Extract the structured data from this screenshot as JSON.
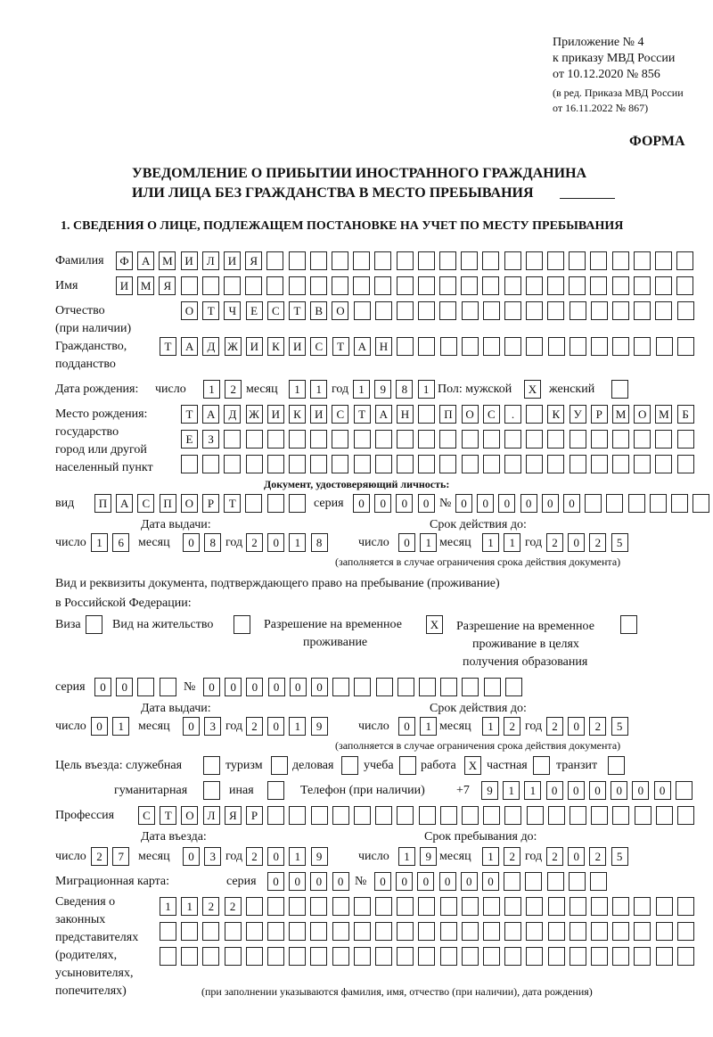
{
  "header": {
    "annex": [
      "Приложение № 4",
      "к приказу МВД России",
      "от 10.12.2020 № 856"
    ],
    "revision": [
      "(в ред. Приказа МВД России",
      "от 16.11.2022 № 867)"
    ],
    "form_label": "ФОРМА",
    "title_line1": "УВЕДОМЛЕНИЕ О ПРИБЫТИИ ИНОСТРАННОГО ГРАЖДАНИНА",
    "title_line2": "ИЛИ ЛИЦА БЕЗ ГРАЖДАНСТВА В МЕСТО ПРЕБЫВАНИЯ"
  },
  "section1": {
    "title": "1. СВЕДЕНИЯ О ЛИЦЕ, ПОДЛЕЖАЩЕМ ПОСТАНОВКЕ НА УЧЕТ ПО МЕСТУ ПРЕБЫВАНИЯ",
    "labels": {
      "surname": "Фамилия",
      "name": "Имя",
      "patronymic": "Отчество",
      "patronymic_note": "(при наличии)",
      "citizenship": "Гражданство,",
      "citizenship2": "подданство",
      "birth_date": "Дата рождения:",
      "day": "число",
      "month": "месяц",
      "year": "год",
      "sex": "Пол: мужской",
      "female": "женский",
      "birthplace": "Место рождения:",
      "birthplace2": "государство",
      "birthplace3": "город или другой",
      "birthplace4": "населенный пункт",
      "id_doc": "Документ, удостоверяющий личность:",
      "kind": "вид",
      "series": "серия",
      "number": "№",
      "issue_date": "Дата выдачи:",
      "valid_until": "Срок действия до:",
      "validity_note": "(заполняется в случае ограничения срока действия документа)",
      "stay_doc1": "Вид и реквизиты документа, подтверждающего право на пребывание (проживание)",
      "stay_doc2": "в Российской Федерации:",
      "visa": "Виза",
      "residence": "Вид на жительство",
      "trp1": "Разрешение на временное",
      "trp2": "проживание",
      "trp_edu1": "Разрешение на временное",
      "trp_edu2": "проживание в целях",
      "trp_edu3": "получения образования",
      "purpose": "Цель въезда: служебная",
      "tourism": "туризм",
      "business": "деловая",
      "study": "учеба",
      "work": "работа",
      "private": "частная",
      "transit": "транзит",
      "humanitarian": "гуманитарная",
      "other": "иная",
      "phone": "Телефон (при наличии)",
      "phone_prefix": "+7",
      "profession": "Профессия",
      "entry_date": "Дата въезда:",
      "stay_until": "Срок пребывания до:",
      "migration_card": "Миграционная карта:",
      "rep1": "Сведения о",
      "rep2": "законных",
      "rep3": "представителях",
      "rep4": "(родителях,",
      "rep5": "усыновителях,",
      "rep6": "попечителях)",
      "rep_note": "(при заполнении указываются фамилия, имя, отчество (при наличии), дата рождения)"
    },
    "values": {
      "surname": "ФАМИЛИЯ",
      "name": "ИМЯ",
      "patronymic": "ОТЧЕСТВО",
      "citizenship": "ТАДЖИКИСТАН",
      "birth_day": "12",
      "birth_month": "11",
      "birth_year": "1981",
      "sex_male": "X",
      "sex_female": "",
      "birthplace1": "ТАДЖИКИСТАН ПОС. КУРМОМБ",
      "birthplace2": "ЕЗ",
      "birthplace3": "",
      "doc_kind": "ПАСПОРТ",
      "doc_series": "0000",
      "doc_number": "000000",
      "doc_issue_day": "16",
      "doc_issue_month": "08",
      "doc_issue_year": "2018",
      "doc_valid_day": "01",
      "doc_valid_month": "11",
      "doc_valid_year": "2025",
      "visa": "",
      "residence": "",
      "trp": "X",
      "trp_edu": "",
      "stay_series": "00",
      "stay_number": "000000",
      "stay_issue_day": "01",
      "stay_issue_month": "03",
      "stay_issue_year": "2019",
      "stay_valid_day": "01",
      "stay_valid_month": "12",
      "stay_valid_year": "2025",
      "purpose_official": "",
      "purpose_tourism": "",
      "purpose_business": "",
      "purpose_study": "",
      "purpose_work": "X",
      "purpose_private": "",
      "purpose_transit": "",
      "purpose_humanitarian": "",
      "purpose_other": "",
      "phone": "911000000",
      "profession": "СТОЛЯР",
      "entry_day": "27",
      "entry_month": "03",
      "entry_year": "2019",
      "stay_until_day": "19",
      "stay_until_month": "12",
      "stay_until_year": "2025",
      "mc_series": "0000",
      "mc_number": "000000",
      "rep1": "1122",
      "rep2": "",
      "rep3": ""
    }
  }
}
